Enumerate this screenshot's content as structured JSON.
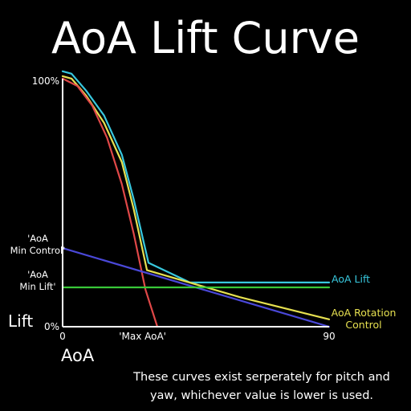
{
  "chart_data": {
    "type": "line",
    "title": "AoA Lift Curve",
    "xlabel": "AoA",
    "ylabel": "Lift",
    "xlim": [
      0,
      90
    ],
    "ylim": [
      0,
      1
    ],
    "x_ticks": [
      {
        "value": 0,
        "label": "0"
      },
      {
        "value": 27,
        "label": "'Max AoA'"
      },
      {
        "value": 90,
        "label": "90"
      }
    ],
    "y_ticks": [
      {
        "value": 1.0,
        "label": "100%"
      },
      {
        "value": 0.0,
        "label": "0%"
      }
    ],
    "y_markers": [
      {
        "value": 0.32,
        "label_lines": [
          "'AoA",
          "Min Lift'"
        ]
      },
      {
        "value": 0.32,
        "label_lines": [
          "'AoA",
          "Min Control'"
        ]
      }
    ],
    "series": [
      {
        "name": "AoA Lift",
        "color": "#38c8de",
        "x": [
          0,
          3,
          8,
          14,
          20,
          24,
          29,
          43,
          60,
          75,
          90
        ],
        "y": [
          1.04,
          1.03,
          0.96,
          0.86,
          0.7,
          0.52,
          0.26,
          0.18,
          0.18,
          0.18,
          0.18
        ]
      },
      {
        "name": "AoA Rotation Control",
        "label_lines": [
          "AoA Rotation",
          "Control"
        ],
        "color": "#e6e050",
        "x": [
          0,
          3,
          8,
          14,
          20,
          24,
          28.5,
          60,
          90
        ],
        "y": [
          1.02,
          1.01,
          0.94,
          0.83,
          0.67,
          0.48,
          0.23,
          0.12,
          0.03
        ]
      },
      {
        "name": "",
        "color": "#e04848",
        "x": [
          0,
          5,
          10,
          15,
          20,
          24,
          28,
          32
        ],
        "y": [
          1.01,
          0.98,
          0.9,
          0.77,
          0.58,
          0.38,
          0.15,
          0.0
        ]
      },
      {
        "name": "",
        "color": "#4a48d8",
        "x": [
          0,
          90
        ],
        "y": [
          0.32,
          0.0
        ]
      },
      {
        "name": "",
        "color": "#38c838",
        "x": [
          0,
          90
        ],
        "y": [
          0.16,
          0.16
        ]
      }
    ],
    "note_lines": [
      "These curves exist serperately for pitch and",
      "yaw, whichever value is lower is used."
    ],
    "grid": false,
    "legend": "inline-right"
  }
}
